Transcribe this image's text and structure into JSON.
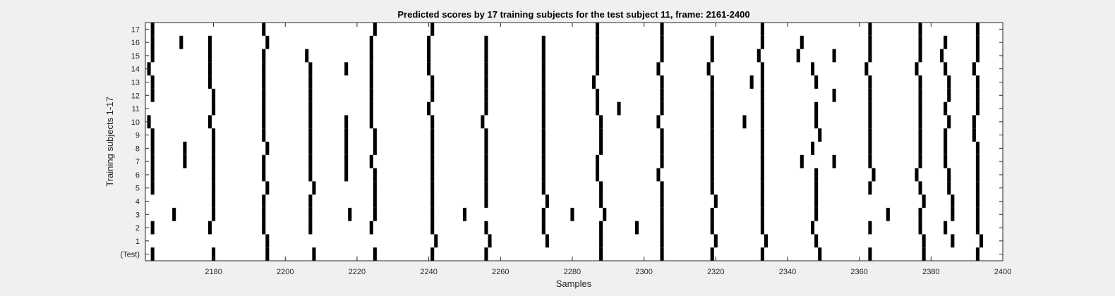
{
  "figure": {
    "background": "#f0f0f0"
  },
  "chart_data": {
    "type": "heatmap",
    "title": "Predicted scores by 17 training subjects for the test subject 11, frame: 2161-2400",
    "xlabel": "Samples",
    "ylabel": "Training subjects 1-17",
    "xlim": [
      2161,
      2400
    ],
    "x_ticks": [
      2180,
      2200,
      2220,
      2240,
      2260,
      2280,
      2300,
      2320,
      2340,
      2360,
      2380,
      2400
    ],
    "y_tick_labels": [
      "(Test)",
      "1",
      "2",
      "3",
      "4",
      "5",
      "6",
      "7",
      "8",
      "9",
      "10",
      "11",
      "12",
      "13",
      "14",
      "15",
      "16",
      "17"
    ],
    "mark_color": "#000000",
    "rows": [
      {
        "label": "(Test)",
        "events": [
          2163,
          2180,
          2195,
          2208,
          2225,
          2241,
          2256,
          2288,
          2305,
          2319,
          2333,
          2349,
          2363,
          2378,
          2393
        ]
      },
      {
        "label": "1",
        "events": [
          2195,
          2242,
          2257,
          2273,
          2288,
          2305,
          2320,
          2334,
          2348,
          2378,
          2386,
          2394
        ]
      },
      {
        "label": "2",
        "events": [
          2163,
          2179,
          2194,
          2207,
          2224,
          2241,
          2256,
          2272,
          2288,
          2298,
          2305,
          2319,
          2333,
          2347,
          2363,
          2377,
          2384,
          2393
        ]
      },
      {
        "label": "3",
        "events": [
          2169,
          2180,
          2194,
          2207,
          2218,
          2225,
          2241,
          2250,
          2272,
          2280,
          2289,
          2305,
          2319,
          2333,
          2348,
          2368,
          2377,
          2386,
          2393
        ]
      },
      {
        "label": "4",
        "events": [
          2180,
          2194,
          2207,
          2225,
          2241,
          2256,
          2273,
          2288,
          2305,
          2320,
          2333,
          2348,
          2378,
          2386,
          2393
        ]
      },
      {
        "label": "5",
        "events": [
          2163,
          2180,
          2195,
          2208,
          2225,
          2241,
          2256,
          2272,
          2288,
          2305,
          2319,
          2333,
          2348,
          2363,
          2377,
          2385,
          2393
        ]
      },
      {
        "label": "6",
        "events": [
          2163,
          2180,
          2194,
          2207,
          2217,
          2225,
          2241,
          2256,
          2272,
          2287,
          2304,
          2319,
          2333,
          2348,
          2364,
          2376,
          2385,
          2393
        ]
      },
      {
        "label": "7",
        "events": [
          2163,
          2172,
          2180,
          2194,
          2207,
          2217,
          2224,
          2241,
          2256,
          2272,
          2287,
          2305,
          2319,
          2333,
          2344,
          2353,
          2363,
          2377,
          2384,
          2393
        ]
      },
      {
        "label": "8",
        "events": [
          2163,
          2172,
          2180,
          2195,
          2207,
          2217,
          2225,
          2241,
          2256,
          2272,
          2288,
          2305,
          2319,
          2333,
          2347,
          2363,
          2377,
          2384,
          2393
        ]
      },
      {
        "label": "9",
        "events": [
          2163,
          2180,
          2194,
          2207,
          2217,
          2225,
          2241,
          2256,
          2272,
          2288,
          2305,
          2319,
          2333,
          2349,
          2363,
          2377,
          2384,
          2392
        ]
      },
      {
        "label": "10",
        "events": [
          2162,
          2179,
          2194,
          2207,
          2217,
          2224,
          2241,
          2255,
          2272,
          2288,
          2304,
          2319,
          2328,
          2333,
          2348,
          2363,
          2377,
          2385,
          2392
        ]
      },
      {
        "label": "11",
        "events": [
          2180,
          2194,
          2207,
          2224,
          2240,
          2256,
          2272,
          2287,
          2293,
          2305,
          2319,
          2333,
          2348,
          2363,
          2377,
          2384,
          2393
        ]
      },
      {
        "label": "12",
        "events": [
          2163,
          2180,
          2194,
          2207,
          2224,
          2241,
          2256,
          2272,
          2287,
          2305,
          2319,
          2333,
          2353,
          2363,
          2377,
          2385,
          2393
        ]
      },
      {
        "label": "13",
        "events": [
          2163,
          2179,
          2194,
          2207,
          2224,
          2241,
          2256,
          2272,
          2286,
          2305,
          2319,
          2330,
          2333,
          2348,
          2363,
          2377,
          2385,
          2393
        ]
      },
      {
        "label": "14",
        "events": [
          2162,
          2179,
          2194,
          2207,
          2217,
          2224,
          2240,
          2256,
          2272,
          2287,
          2304,
          2318,
          2333,
          2347,
          2362,
          2376,
          2384,
          2392
        ]
      },
      {
        "label": "15",
        "events": [
          2163,
          2179,
          2194,
          2206,
          2224,
          2240,
          2256,
          2272,
          2287,
          2305,
          2319,
          2332,
          2343,
          2353,
          2363,
          2377,
          2383,
          2393
        ]
      },
      {
        "label": "16",
        "events": [
          2163,
          2171,
          2179,
          2195,
          2224,
          2240,
          2256,
          2272,
          2287,
          2305,
          2319,
          2333,
          2344,
          2363,
          2377,
          2384,
          2393
        ]
      },
      {
        "label": "17",
        "events": [
          2163,
          2194,
          2225,
          2241,
          2287,
          2305,
          2333,
          2363,
          2377,
          2393
        ]
      }
    ]
  }
}
